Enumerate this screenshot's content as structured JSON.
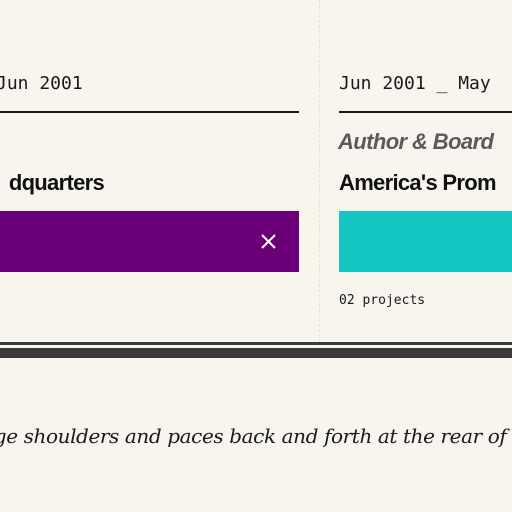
{
  "timeline": {
    "left_entry": {
      "date_range": "Jun 2001",
      "title": "dquarters",
      "bar_color": "#6a0078",
      "close_icon": "close-icon"
    },
    "right_entry": {
      "date_range": "Jun 2001 _ May",
      "role": "Author & Board",
      "title": "America's Prom",
      "bar_color": "#13c6c2",
      "projects_count": "02 projects"
    }
  },
  "quote": {
    "text": "ange shoulders and paces back and forth at the rear of t"
  },
  "colors": {
    "background": "#f7f5ee",
    "text": "#1a1a1a",
    "role_text": "#5a5a5a",
    "divider": "#3a3a3a"
  }
}
